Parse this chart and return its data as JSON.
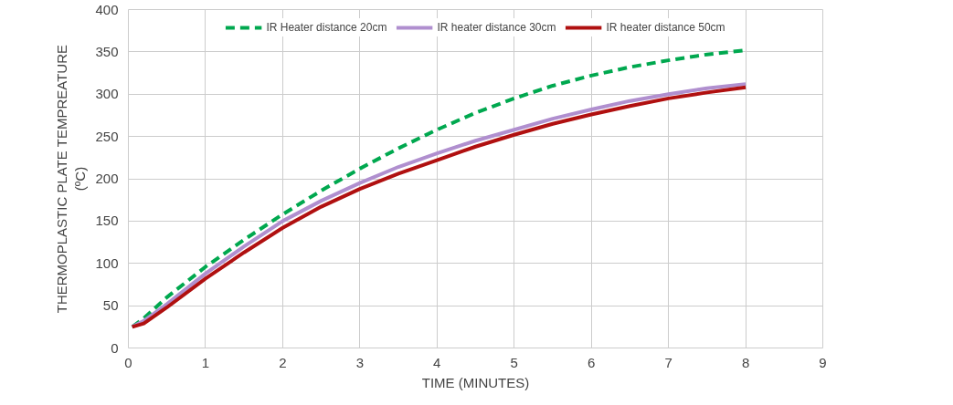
{
  "chart_data": {
    "type": "line",
    "xlabel": "TIME (MINUTES)",
    "ylabel": "THERMOPLASTIC PLATE TEMPREATURE\n(ºC)",
    "xlim": [
      0,
      9
    ],
    "ylim": [
      0,
      400
    ],
    "xticks": [
      0,
      1,
      2,
      3,
      4,
      5,
      6,
      7,
      8,
      9
    ],
    "yticks": [
      0,
      50,
      100,
      150,
      200,
      250,
      300,
      350,
      400
    ],
    "grid": true,
    "legend": "top",
    "x": [
      0.05,
      0.2,
      0.5,
      1,
      1.5,
      2,
      2.5,
      3,
      3.5,
      4,
      4.5,
      5,
      5.5,
      6,
      6.5,
      7,
      7.5,
      8
    ],
    "series": [
      {
        "name": "IR Heater distance 20cm",
        "color": "#00a84f",
        "line_style": "dashed",
        "values": [
          25,
          35,
          60,
          96,
          128,
          158,
          186,
          212,
          236,
          258,
          278,
          295,
          310,
          322,
          332,
          340,
          347,
          352
        ]
      },
      {
        "name": "IR heater distance 30cm",
        "color": "#b08fcf",
        "line_style": "solid",
        "values": [
          25,
          32,
          52,
          88,
          120,
          150,
          174,
          195,
          214,
          230,
          245,
          258,
          271,
          282,
          292,
          300,
          307,
          312
        ]
      },
      {
        "name": "IR heater distance 50cm",
        "color": "#b01010",
        "line_style": "solid",
        "values": [
          25,
          29,
          48,
          82,
          113,
          142,
          167,
          188,
          206,
          222,
          238,
          252,
          265,
          276,
          286,
          295,
          302,
          308
        ]
      }
    ]
  }
}
